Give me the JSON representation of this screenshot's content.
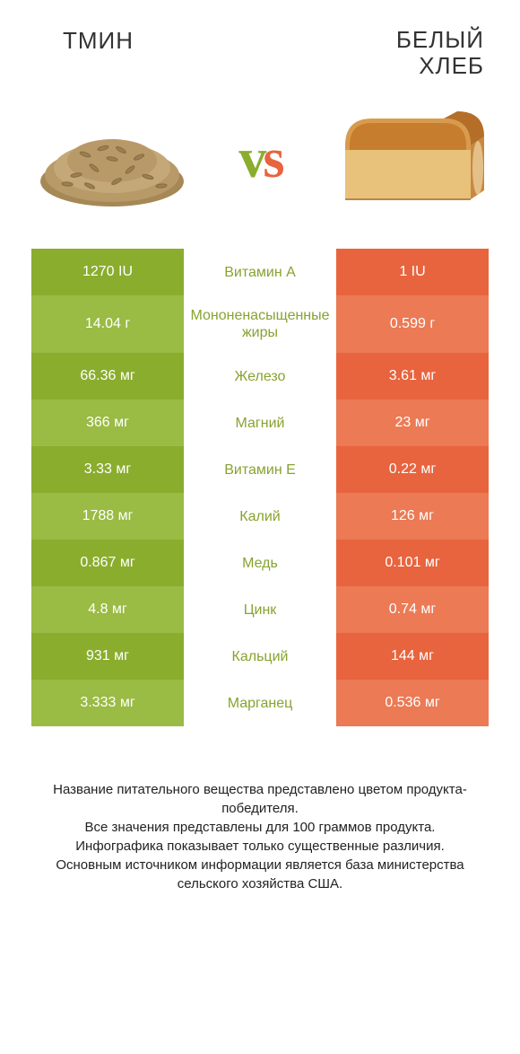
{
  "colors": {
    "green_dark": "#8aad2e",
    "green_light": "#9abb44",
    "orange_dark": "#e8643e",
    "orange_light": "#eb7a55",
    "mid_text": "#87a330",
    "vs_v": "#8aad2e",
    "vs_s": "#e8643e"
  },
  "header": {
    "left_title": "ТМИН",
    "right_title": "БЕЛЫЙ\nХЛЕБ",
    "vs": "vs"
  },
  "rows": [
    {
      "left": "1270 IU",
      "label": "Витамин A",
      "right": "1 IU",
      "tall": false
    },
    {
      "left": "14.04 г",
      "label": "Мононенасыщенные жиры",
      "right": "0.599 г",
      "tall": true
    },
    {
      "left": "66.36 мг",
      "label": "Железо",
      "right": "3.61 мг",
      "tall": false
    },
    {
      "left": "366 мг",
      "label": "Магний",
      "right": "23 мг",
      "tall": false
    },
    {
      "left": "3.33 мг",
      "label": "Витамин E",
      "right": "0.22 мг",
      "tall": false
    },
    {
      "left": "1788 мг",
      "label": "Калий",
      "right": "126 мг",
      "tall": false
    },
    {
      "left": "0.867 мг",
      "label": "Медь",
      "right": "0.101 мг",
      "tall": false
    },
    {
      "left": "4.8 мг",
      "label": "Цинк",
      "right": "0.74 мг",
      "tall": false
    },
    {
      "left": "931 мг",
      "label": "Кальций",
      "right": "144 мг",
      "tall": false
    },
    {
      "left": "3.333 мг",
      "label": "Марганец",
      "right": "0.536 мг",
      "tall": false
    }
  ],
  "footer": {
    "line1": "Название питательного вещества представлено цветом продукта-победителя.",
    "line2": "Все значения представлены для 100 граммов продукта.",
    "line3": "Инфографика показывает только существенные различия.",
    "line4": "Основным источником информации является база министерства сельского хозяйства США."
  }
}
